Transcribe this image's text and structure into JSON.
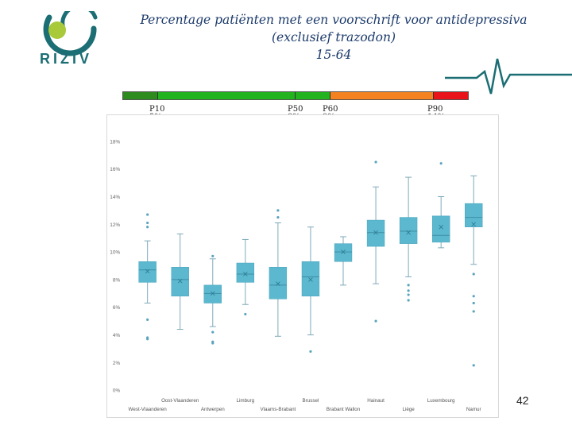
{
  "logo": {
    "text": "RIZIV",
    "colors": {
      "ring": "#1b6e74",
      "dot": "#a8c93a"
    }
  },
  "header": {
    "title_lines": [
      "Percentage patiënten met een voorschrift voor antidepressiva",
      "(exclusief trazodon)",
      "15-64"
    ]
  },
  "percentile_bar": {
    "segments": [
      {
        "color": "#2e8b1e",
        "fraction": 0.1
      },
      {
        "color": "#22b31e",
        "fraction": 0.4
      },
      {
        "color": "#22b31e",
        "fraction": 0.1
      },
      {
        "color": "#f58220",
        "fraction": 0.3
      },
      {
        "color": "#e8131b",
        "fraction": 0.1
      }
    ],
    "markers": [
      {
        "label": "P10",
        "value": "5%"
      },
      {
        "label": "P50",
        "value": "8%"
      },
      {
        "label": "P60",
        "value": "9%"
      },
      {
        "label": "P90",
        "value": "14%"
      }
    ]
  },
  "chart_data": {
    "type": "box",
    "title": "",
    "xlabel": "",
    "ylabel": "",
    "ylim": [
      0,
      18
    ],
    "yticks": [
      "0%",
      "2%",
      "4%",
      "6%",
      "8%",
      "10%",
      "12%",
      "14%",
      "16%",
      "18%"
    ],
    "grid": false,
    "legend": "none",
    "box_color": "#5bb8cf",
    "categories": [
      "West-Vlaanderen",
      "Oost-Vlaanderen",
      "Antwerpen",
      "Limburg",
      "Vlaams-Brabant",
      "Brussel",
      "Brabant Wallon",
      "Hainaut",
      "Liège",
      "Luxembourg",
      "Namur"
    ],
    "boxes": [
      {
        "min": 6.3,
        "q1": 7.8,
        "median": 8.7,
        "q3": 9.3,
        "max": 10.8,
        "mean": 8.6,
        "outliers": [
          12.7,
          12.1,
          11.8,
          5.1,
          3.8,
          3.7
        ]
      },
      {
        "min": 4.4,
        "q1": 6.8,
        "median": 8.0,
        "q3": 8.9,
        "max": 11.3,
        "mean": 7.9,
        "outliers": []
      },
      {
        "min": 4.6,
        "q1": 6.3,
        "median": 7.0,
        "q3": 7.6,
        "max": 9.5,
        "mean": 7.0,
        "outliers": [
          9.7,
          4.2,
          3.5,
          3.4
        ]
      },
      {
        "min": 6.2,
        "q1": 7.8,
        "median": 8.4,
        "q3": 9.2,
        "max": 10.9,
        "mean": 8.4,
        "outliers": [
          5.5
        ]
      },
      {
        "min": 3.9,
        "q1": 6.6,
        "median": 7.6,
        "q3": 8.9,
        "max": 12.1,
        "mean": 7.7,
        "outliers": [
          13.0,
          12.5
        ]
      },
      {
        "min": 4.0,
        "q1": 6.8,
        "median": 8.2,
        "q3": 9.3,
        "max": 11.8,
        "mean": 8.0,
        "outliers": [
          2.8
        ]
      },
      {
        "min": 7.6,
        "q1": 9.3,
        "median": 10.0,
        "q3": 10.6,
        "max": 11.1,
        "mean": 10.0,
        "outliers": []
      },
      {
        "min": 7.7,
        "q1": 10.4,
        "median": 11.4,
        "q3": 12.3,
        "max": 14.7,
        "mean": 11.4,
        "outliers": [
          16.5,
          5.0
        ]
      },
      {
        "min": 8.2,
        "q1": 10.6,
        "median": 11.5,
        "q3": 12.5,
        "max": 15.4,
        "mean": 11.4,
        "outliers": [
          7.6,
          7.2,
          6.9,
          6.5
        ]
      },
      {
        "min": 10.3,
        "q1": 10.7,
        "median": 11.2,
        "q3": 12.6,
        "max": 14.0,
        "mean": 11.8,
        "outliers": [
          16.4
        ]
      },
      {
        "min": 9.1,
        "q1": 11.8,
        "median": 12.5,
        "q3": 13.5,
        "max": 15.5,
        "mean": 12.0,
        "outliers": [
          8.4,
          6.8,
          6.3,
          5.7,
          1.8
        ]
      }
    ]
  },
  "footer": {
    "slide_number": "42"
  }
}
